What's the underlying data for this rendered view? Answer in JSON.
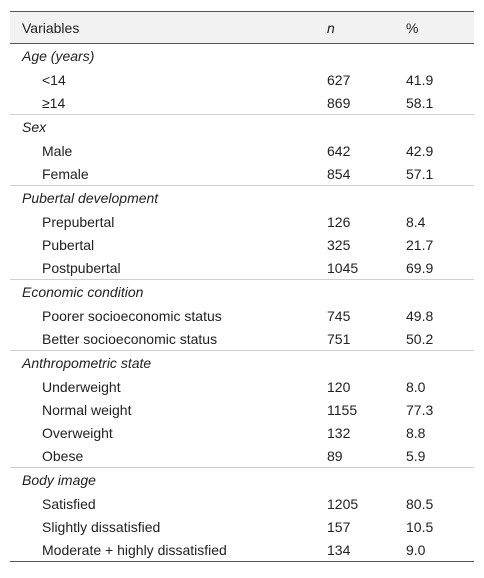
{
  "table": {
    "header": [
      "Variables",
      "n",
      "%"
    ],
    "groups": [
      {
        "label": "Age (years)",
        "rows": [
          [
            "<14",
            "627",
            "41.9"
          ],
          [
            "≥14",
            "869",
            "58.1"
          ]
        ]
      },
      {
        "label": "Sex",
        "rows": [
          [
            "Male",
            "642",
            "42.9"
          ],
          [
            "Female",
            "854",
            "57.1"
          ]
        ]
      },
      {
        "label": "Pubertal development",
        "rows": [
          [
            "Prepubertal",
            "126",
            "8.4"
          ],
          [
            "Pubertal",
            "325",
            "21.7"
          ],
          [
            "Postpubertal",
            "1045",
            "69.9"
          ]
        ]
      },
      {
        "label": "Economic condition",
        "rows": [
          [
            "Poorer socioeconomic status",
            "745",
            "49.8"
          ],
          [
            "Better socioeconomic status",
            "751",
            "50.2"
          ]
        ]
      },
      {
        "label": "Anthropometric state",
        "rows": [
          [
            "Underweight",
            "120",
            "8.0"
          ],
          [
            "Normal weight",
            "1155",
            "77.3"
          ],
          [
            "Overweight",
            "132",
            "8.8"
          ],
          [
            "Obese",
            "89",
            "5.9"
          ]
        ]
      },
      {
        "label": "Body image",
        "rows": [
          [
            "Satisfied",
            "1205",
            "80.5"
          ],
          [
            "Slightly dissatisfied",
            "157",
            "10.5"
          ],
          [
            "Moderate + highly dissatisfied",
            "134",
            "9.0"
          ]
        ]
      }
    ]
  }
}
